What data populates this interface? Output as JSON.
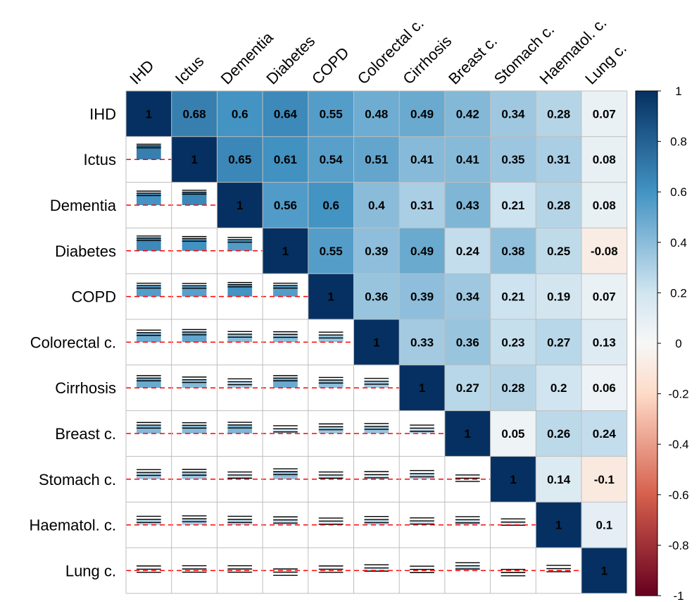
{
  "chart_data": {
    "type": "heatmap",
    "title": "",
    "variables": [
      "IHD",
      "Ictus",
      "Dementia",
      "Diabetes",
      "COPD",
      "Colorectal c.",
      "Cirrhosis",
      "Breast c.",
      "Stomach c.",
      "Haematol. c.",
      "Lung c."
    ],
    "matrix": [
      [
        1,
        0.68,
        0.6,
        0.64,
        0.55,
        0.48,
        0.49,
        0.42,
        0.34,
        0.28,
        0.07
      ],
      [
        0.68,
        1,
        0.65,
        0.61,
        0.54,
        0.51,
        0.41,
        0.41,
        0.35,
        0.31,
        0.08
      ],
      [
        0.6,
        0.65,
        1,
        0.56,
        0.6,
        0.4,
        0.31,
        0.43,
        0.21,
        0.28,
        0.08
      ],
      [
        0.64,
        0.61,
        0.56,
        1,
        0.55,
        0.39,
        0.49,
        0.24,
        0.38,
        0.25,
        -0.08
      ],
      [
        0.55,
        0.54,
        0.6,
        0.55,
        1,
        0.36,
        0.39,
        0.34,
        0.21,
        0.19,
        0.07
      ],
      [
        0.48,
        0.51,
        0.4,
        0.39,
        0.36,
        1,
        0.33,
        0.36,
        0.23,
        0.27,
        0.13
      ],
      [
        0.49,
        0.41,
        0.31,
        0.49,
        0.39,
        0.33,
        1,
        0.27,
        0.28,
        0.2,
        0.06
      ],
      [
        0.42,
        0.41,
        0.43,
        0.24,
        0.34,
        0.36,
        0.27,
        1,
        0.05,
        0.26,
        0.24
      ],
      [
        0.34,
        0.35,
        0.21,
        0.38,
        0.21,
        0.23,
        0.28,
        0.05,
        1,
        0.14,
        -0.1
      ],
      [
        0.28,
        0.31,
        0.28,
        0.25,
        0.19,
        0.27,
        0.2,
        0.26,
        0.14,
        1,
        0.1
      ],
      [
        0.07,
        0.08,
        0.08,
        -0.08,
        0.07,
        0.13,
        0.06,
        0.24,
        -0.1,
        0.1,
        1
      ]
    ],
    "upper_labels": [
      [
        "1",
        "0.68",
        "0.6",
        "0.64",
        "0.55",
        "0.48",
        "0.49",
        "0.42",
        "0.34",
        "0.28",
        "0.07"
      ],
      [
        "",
        "1",
        "0.65",
        "0.61",
        "0.54",
        "0.51",
        "0.41",
        "0.41",
        "0.35",
        "0.31",
        "0.08"
      ],
      [
        "",
        "",
        "1",
        "0.56",
        "0.6",
        "0.4",
        "0.31",
        "0.43",
        "0.21",
        "0.28",
        "0.08"
      ],
      [
        "",
        "",
        "",
        "1",
        "0.55",
        "0.39",
        "0.49",
        "0.24",
        "0.38",
        "0.25",
        "-0.08"
      ],
      [
        "",
        "",
        "",
        "",
        "1",
        "0.36",
        "0.39",
        "0.34",
        "0.21",
        "0.19",
        "0.07"
      ],
      [
        "",
        "",
        "",
        "",
        "",
        "1",
        "0.33",
        "0.36",
        "0.23",
        "0.27",
        "0.13"
      ],
      [
        "",
        "",
        "",
        "",
        "",
        "",
        "1",
        "0.27",
        "0.28",
        "0.2",
        "0.06"
      ],
      [
        "",
        "",
        "",
        "",
        "",
        "",
        "",
        "1",
        "0.05",
        "0.26",
        "0.24"
      ],
      [
        "",
        "",
        "",
        "",
        "",
        "",
        "",
        "",
        "1",
        "0.14",
        "-0.1"
      ],
      [
        "",
        "",
        "",
        "",
        "",
        "",
        "",
        "",
        "",
        "1",
        "0.1"
      ],
      [
        "",
        "",
        "",
        "",
        "",
        "",
        "",
        "",
        "",
        "",
        "1"
      ]
    ],
    "lower_ci": [
      [
        null,
        null,
        null,
        null,
        null,
        null,
        null,
        null,
        null,
        null,
        null
      ],
      [
        [
          0.58,
          0.76
        ],
        null,
        null,
        null,
        null,
        null,
        null,
        null,
        null,
        null,
        null
      ],
      [
        [
          0.48,
          0.7
        ],
        [
          0.55,
          0.74
        ],
        null,
        null,
        null,
        null,
        null,
        null,
        null,
        null,
        null
      ],
      [
        [
          0.52,
          0.74
        ],
        [
          0.48,
          0.71
        ],
        [
          0.43,
          0.67
        ],
        null,
        null,
        null,
        null,
        null,
        null,
        null,
        null
      ],
      [
        [
          0.42,
          0.66
        ],
        [
          0.41,
          0.65
        ],
        [
          0.48,
          0.7
        ],
        [
          0.42,
          0.66
        ],
        null,
        null,
        null,
        null,
        null,
        null,
        null
      ],
      [
        [
          0.34,
          0.6
        ],
        [
          0.37,
          0.63
        ],
        [
          0.25,
          0.53
        ],
        [
          0.24,
          0.52
        ],
        [
          0.21,
          0.5
        ],
        null,
        null,
        null,
        null,
        null,
        null
      ],
      [
        [
          0.35,
          0.61
        ],
        [
          0.27,
          0.54
        ],
        [
          0.16,
          0.45
        ],
        [
          0.35,
          0.61
        ],
        [
          0.24,
          0.52
        ],
        [
          0.18,
          0.47
        ],
        null,
        null,
        null,
        null,
        null
      ],
      [
        [
          0.27,
          0.55
        ],
        [
          0.27,
          0.54
        ],
        [
          0.28,
          0.56
        ],
        [
          0.08,
          0.39
        ],
        [
          0.19,
          0.48
        ],
        [
          0.21,
          0.5
        ],
        [
          0.11,
          0.42
        ],
        null,
        null,
        null,
        null
      ],
      [
        [
          0.19,
          0.48
        ],
        [
          0.2,
          0.49
        ],
        [
          0.05,
          0.36
        ],
        [
          0.23,
          0.52
        ],
        [
          0.05,
          0.36
        ],
        [
          0.07,
          0.38
        ],
        [
          0.12,
          0.43
        ],
        [
          -0.11,
          0.21
        ],
        null,
        null,
        null
      ],
      [
        [
          0.12,
          0.43
        ],
        [
          0.16,
          0.45
        ],
        [
          0.12,
          0.43
        ],
        [
          0.09,
          0.4
        ],
        [
          0.03,
          0.34
        ],
        [
          0.11,
          0.42
        ],
        [
          0.04,
          0.35
        ],
        [
          0.1,
          0.41
        ],
        [
          -0.02,
          0.3
        ],
        null,
        null
      ],
      [
        [
          -0.09,
          0.23
        ],
        [
          -0.08,
          0.24
        ],
        [
          -0.08,
          0.24
        ],
        [
          -0.24,
          0.08
        ],
        [
          -0.09,
          0.23
        ],
        [
          -0.03,
          0.29
        ],
        [
          -0.1,
          0.22
        ],
        [
          0.08,
          0.39
        ],
        [
          -0.26,
          0.06
        ],
        [
          -0.06,
          0.26
        ],
        null
      ]
    ],
    "colorbar": {
      "ticks": [
        "1",
        "0.8",
        "0.6",
        "0.4",
        "0.2",
        "0",
        "-0.2",
        "-0.4",
        "-0.6",
        "-0.8",
        "-1"
      ],
      "range": [
        -1,
        1
      ]
    },
    "colors": {
      "strong_negative": "#67001F",
      "negative": "#D6604D",
      "light_negative": "#FDDBC7",
      "neutral": "#F7F7F7",
      "light_positive": "#D1E5F0",
      "positive": "#4393C3",
      "strong_positive": "#053061",
      "zero_line": "#FF0000",
      "grid": "#BEBEBE"
    }
  }
}
